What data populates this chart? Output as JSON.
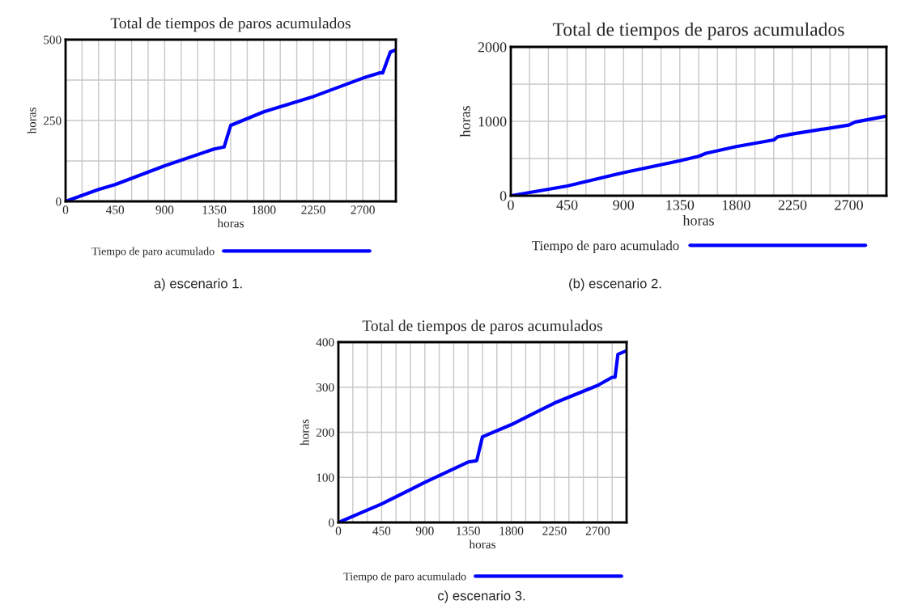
{
  "chart_data": [
    {
      "type": "line",
      "title": "Total de tiempos de paros acumulados",
      "xlabel": "horas",
      "ylabel": "horas",
      "annotations": [
        "a) escenario 1."
      ],
      "x": [
        0,
        300,
        450,
        900,
        1350,
        1440,
        1500,
        1800,
        2250,
        2700,
        2850,
        2880,
        2950,
        3000
      ],
      "series": [
        {
          "name": "Tiempo de paro acumulado",
          "color": "#0000ff",
          "values": [
            0,
            37,
            52,
            110,
            162,
            168,
            235,
            277,
            324,
            381,
            397,
            397,
            462,
            468
          ]
        }
      ],
      "xlim": [
        0,
        3000
      ],
      "xticks": [
        0,
        {
          "value": 150,
          "label": null
        },
        {
          "value": 300,
          "label": null
        },
        450,
        {
          "value": 600,
          "label": null
        },
        {
          "value": 750,
          "label": null
        },
        900,
        {
          "value": 1050,
          "label": null
        },
        {
          "value": 1200,
          "label": null
        },
        1350,
        {
          "value": 1500,
          "label": null
        },
        {
          "value": 1650,
          "label": null
        },
        1800,
        {
          "value": 1950,
          "label": null
        },
        {
          "value": 2100,
          "label": null
        },
        2250,
        {
          "value": 2400,
          "label": null
        },
        {
          "value": 2550,
          "label": null
        },
        2700,
        {
          "value": 2850,
          "label": null
        }
      ],
      "ylim": [
        0,
        500
      ],
      "yticks": [
        0,
        {
          "value": 125,
          "label": null
        },
        250,
        {
          "value": 375,
          "label": null
        },
        500
      ],
      "grid": true,
      "legend": "bottom",
      "line_style": "solid",
      "marker": "none"
    },
    {
      "type": "line",
      "title": "Total de tiempos de paros acumulados",
      "xlabel": "horas",
      "ylabel": "horas",
      "annotations": [
        "(b) escenario 2."
      ],
      "x": [
        0,
        450,
        900,
        1350,
        1500,
        1560,
        1800,
        2100,
        2130,
        2250,
        2700,
        2750,
        3000
      ],
      "series": [
        {
          "name": "Tiempo de paro acumulado",
          "color": "#0000ff",
          "values": [
            0,
            130,
            310,
            470,
            530,
            570,
            660,
            750,
            790,
            830,
            950,
            990,
            1070
          ]
        }
      ],
      "xlim": [
        0,
        3000
      ],
      "xticks": [
        0,
        {
          "value": 150,
          "label": null
        },
        {
          "value": 300,
          "label": null
        },
        450,
        {
          "value": 600,
          "label": null
        },
        {
          "value": 750,
          "label": null
        },
        900,
        {
          "value": 1050,
          "label": null
        },
        {
          "value": 1200,
          "label": null
        },
        1350,
        {
          "value": 1500,
          "label": null
        },
        {
          "value": 1650,
          "label": null
        },
        1800,
        {
          "value": 1950,
          "label": null
        },
        {
          "value": 2100,
          "label": null
        },
        2250,
        {
          "value": 2400,
          "label": null
        },
        {
          "value": 2550,
          "label": null
        },
        2700,
        {
          "value": 2850,
          "label": null
        }
      ],
      "ylim": [
        0,
        2000
      ],
      "yticks": [
        0,
        {
          "value": 500,
          "label": null
        },
        1000,
        {
          "value": 1500,
          "label": null
        },
        2000
      ],
      "grid": true,
      "legend": "bottom",
      "line_style": "solid",
      "marker": "none"
    },
    {
      "type": "line",
      "title": "Total de tiempos de paros acumulados",
      "xlabel": "horas",
      "ylabel": "horas",
      "annotations": [
        "c) escenario 3."
      ],
      "x": [
        0,
        450,
        900,
        1350,
        1440,
        1500,
        1800,
        2250,
        2700,
        2850,
        2880,
        2910,
        3000
      ],
      "series": [
        {
          "name": "Tiempo de paro acumulado",
          "color": "#0000ff",
          "values": [
            0,
            41,
            89,
            134,
            137,
            190,
            217,
            265,
            304,
            322,
            322,
            373,
            381
          ]
        }
      ],
      "xlim": [
        0,
        3000
      ],
      "xticks": [
        0,
        {
          "value": 150,
          "label": null
        },
        {
          "value": 300,
          "label": null
        },
        450,
        {
          "value": 600,
          "label": null
        },
        {
          "value": 750,
          "label": null
        },
        900,
        {
          "value": 1050,
          "label": null
        },
        {
          "value": 1200,
          "label": null
        },
        1350,
        {
          "value": 1500,
          "label": null
        },
        {
          "value": 1650,
          "label": null
        },
        1800,
        {
          "value": 1950,
          "label": null
        },
        {
          "value": 2100,
          "label": null
        },
        2250,
        {
          "value": 2400,
          "label": null
        },
        {
          "value": 2550,
          "label": null
        },
        2700,
        {
          "value": 2850,
          "label": null
        }
      ],
      "ylim": [
        0,
        400
      ],
      "yticks": [
        0,
        100,
        200,
        300,
        400
      ],
      "grid": true,
      "legend": "bottom",
      "line_style": "solid",
      "marker": "none"
    }
  ]
}
